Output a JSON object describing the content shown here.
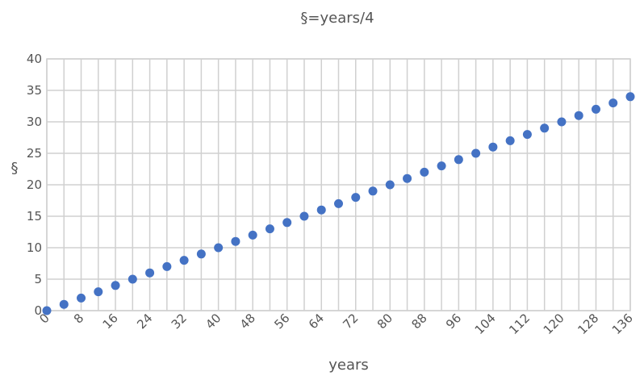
{
  "chart_data": {
    "type": "scatter",
    "title": "§=years/4",
    "xlabel": "years",
    "ylabel": "§",
    "xlim": [
      0,
      136
    ],
    "ylim": [
      0,
      40
    ],
    "x_ticks": [
      0,
      8,
      16,
      24,
      32,
      40,
      48,
      56,
      64,
      72,
      80,
      88,
      96,
      104,
      112,
      120,
      128,
      136
    ],
    "y_ticks": [
      0,
      5,
      10,
      15,
      20,
      25,
      30,
      35,
      40
    ],
    "grid": true,
    "series": [
      {
        "color": "#4472c4",
        "x": [
          0,
          4,
          8,
          12,
          16,
          20,
          24,
          28,
          32,
          36,
          40,
          44,
          48,
          52,
          56,
          60,
          64,
          68,
          72,
          76,
          80,
          84,
          88,
          92,
          96,
          100,
          104,
          108,
          112,
          116,
          120,
          124,
          128,
          132,
          136
        ],
        "y": [
          0,
          1,
          2,
          3,
          4,
          5,
          6,
          7,
          8,
          9,
          10,
          11,
          12,
          13,
          14,
          15,
          16,
          17,
          18,
          19,
          20,
          21,
          22,
          23,
          24,
          25,
          26,
          27,
          28,
          29,
          30,
          31,
          32,
          33,
          34
        ]
      }
    ]
  }
}
